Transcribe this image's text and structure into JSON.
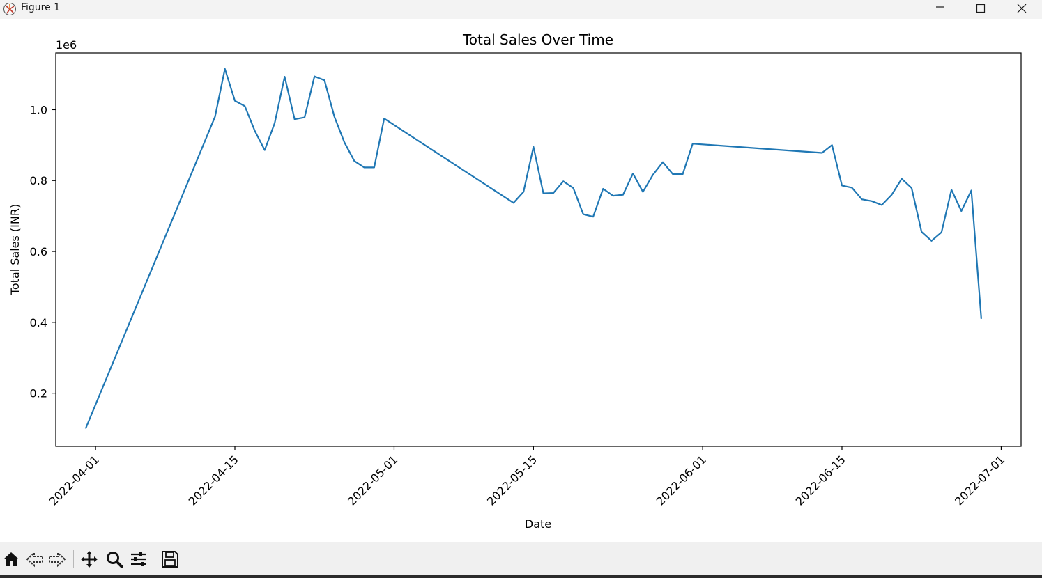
{
  "window": {
    "title": "Figure 1"
  },
  "toolbar": {
    "tools": [
      "home-icon",
      "back-icon",
      "forward-icon",
      "pan-icon",
      "zoom-icon",
      "configure-subplots-icon",
      "save-icon"
    ]
  },
  "colors": {
    "line": "#1f77b4",
    "axes": "#000000",
    "toolbar_bg": "#f0f0f0",
    "titlebar_bg": "#f3f3f3"
  },
  "chart_data": {
    "type": "line",
    "title": "Total Sales Over Time",
    "xlabel": "Date",
    "ylabel": "Total Sales (INR)",
    "y_offset_label": "1e6",
    "xlim": [
      "2022-03-28",
      "2022-07-03"
    ],
    "ylim": [
      0.05,
      1.16
    ],
    "x_ticks": [
      "2022-04-01",
      "2022-04-15",
      "2022-05-01",
      "2022-05-15",
      "2022-06-01",
      "2022-06-15",
      "2022-07-01"
    ],
    "x_tick_labels": [
      "2022-04-01",
      "2022-04-15",
      "2022-05-01",
      "2022-05-15",
      "2022-06-01",
      "2022-06-15",
      "2022-07-01"
    ],
    "y_ticks": [
      0.2,
      0.4,
      0.6,
      0.8,
      1.0
    ],
    "y_tick_labels": [
      "0.2",
      "0.4",
      "0.6",
      "0.8",
      "1.0"
    ],
    "grid": false,
    "series": [
      {
        "x": [
          "2022-03-31",
          "2022-04-13",
          "2022-04-14",
          "2022-04-15",
          "2022-04-16",
          "2022-04-17",
          "2022-04-18",
          "2022-04-19",
          "2022-04-20",
          "2022-04-21",
          "2022-04-22",
          "2022-04-23",
          "2022-04-24",
          "2022-04-25",
          "2022-04-26",
          "2022-04-27",
          "2022-04-28",
          "2022-04-29",
          "2022-04-30",
          "2022-05-13",
          "2022-05-14",
          "2022-05-15",
          "2022-05-16",
          "2022-05-17",
          "2022-05-18",
          "2022-05-19",
          "2022-05-20",
          "2022-05-21",
          "2022-05-22",
          "2022-05-23",
          "2022-05-24",
          "2022-05-25",
          "2022-05-26",
          "2022-05-27",
          "2022-05-28",
          "2022-05-29",
          "2022-05-30",
          "2022-05-31",
          "2022-06-13",
          "2022-06-14",
          "2022-06-15",
          "2022-06-16",
          "2022-06-17",
          "2022-06-18",
          "2022-06-19",
          "2022-06-20",
          "2022-06-21",
          "2022-06-22",
          "2022-06-23",
          "2022-06-24",
          "2022-06-25",
          "2022-06-26",
          "2022-06-27",
          "2022-06-28",
          "2022-06-29"
        ],
        "values": [
          0.1,
          0.98,
          1.115,
          1.025,
          1.01,
          0.94,
          0.886,
          0.962,
          1.093,
          0.973,
          0.978,
          1.094,
          1.083,
          0.98,
          0.908,
          0.855,
          0.837,
          0.837,
          0.975,
          0.737,
          0.768,
          0.895,
          0.764,
          0.765,
          0.798,
          0.779,
          0.705,
          0.698,
          0.777,
          0.757,
          0.76,
          0.82,
          0.768,
          0.816,
          0.852,
          0.818,
          0.818,
          0.904,
          0.878,
          0.9,
          0.786,
          0.78,
          0.747,
          0.742,
          0.731,
          0.76,
          0.805,
          0.779,
          0.655,
          0.63,
          0.654,
          0.774,
          0.714,
          0.772,
          0.41
        ]
      }
    ]
  }
}
